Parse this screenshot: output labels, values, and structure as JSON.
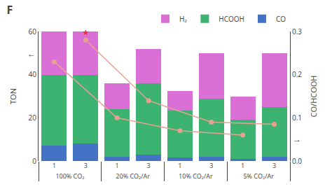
{
  "chart_data": {
    "type": "bar",
    "title": "F",
    "stacked": true,
    "categories": [
      [
        "100% CO₂",
        "1"
      ],
      [
        "100% CO₂",
        "3"
      ],
      [
        "20% CO₂/Ar",
        "1"
      ],
      [
        "20% CO₂/Ar",
        "3"
      ],
      [
        "10% CO₂/Ar",
        "1"
      ],
      [
        "10% CO₂/Ar",
        "3"
      ],
      [
        "5% CO₂/Ar",
        "1"
      ],
      [
        "5% CO₂/Ar",
        "3"
      ]
    ],
    "series": [
      {
        "name": "CO",
        "color": "#4472c4",
        "values": [
          7,
          8,
          2,
          3,
          1.5,
          2,
          1,
          2
        ]
      },
      {
        "name": "HCOOH",
        "color": "#3cb371",
        "values": [
          33,
          32,
          22,
          33,
          22,
          27,
          18,
          23
        ]
      },
      {
        "name": "H₂",
        "color": "#da70d6",
        "values": [
          20,
          20,
          12,
          16,
          9,
          21,
          11,
          25
        ]
      },
      {
        "type": "line",
        "axis": "y2",
        "color": "#e8a090",
        "marker": "circle",
        "line_style": "solid",
        "x": [
          [
            "100% CO₂",
            "1"
          ],
          [
            "20% CO₂/Ar",
            "1"
          ],
          [
            "10% CO₂/Ar",
            "1"
          ],
          [
            "5% CO₂/Ar",
            "1"
          ]
        ],
        "values": [
          0.23,
          0.1,
          0.07,
          0.06
        ]
      },
      {
        "type": "line",
        "axis": "y2",
        "color": "#e8a090",
        "marker": "circle",
        "line_style": "solid",
        "x": [
          [
            "100% CO₂",
            "3"
          ],
          [
            "20% CO₂/Ar",
            "3"
          ],
          [
            "10% CO₂/Ar",
            "3"
          ],
          [
            "5% CO₂/Ar",
            "3"
          ]
        ],
        "values": [
          0.28,
          0.14,
          0.09,
          0.085
        ]
      }
    ],
    "ylabel": "TON",
    "y2label": "CO/HCOOH",
    "ylim": [
      0,
      60
    ],
    "yticks": [
      0,
      20,
      40,
      60
    ],
    "y2lim": [
      0,
      0.3
    ],
    "y2ticks": [
      {
        "value": 0,
        "label": "0.0"
      },
      0.1,
      0.2,
      0.3
    ],
    "annotations": [
      {
        "text": "*",
        "x": [
          "100% CO₂",
          "3"
        ],
        "y": 0.28,
        "axis": "y2",
        "color": "red"
      },
      {
        "text": "←",
        "axis": "y"
      },
      {
        "text": "→",
        "axis": "y2"
      }
    ],
    "legend": "upper right",
    "grid": false
  }
}
